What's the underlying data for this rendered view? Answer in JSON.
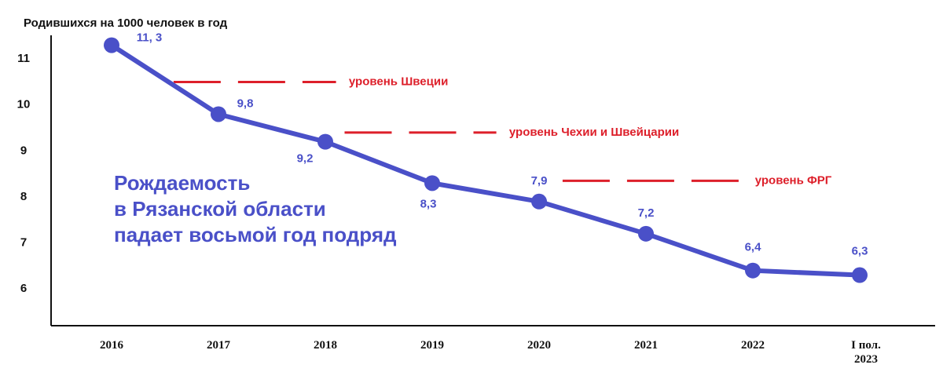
{
  "chart_data": {
    "type": "line",
    "y_axis_label": "Родившихся на 1000 человек в год",
    "categories": [
      "2016",
      "2017",
      "2018",
      "2019",
      "2020",
      "2021",
      "2022",
      "I пол. 2023"
    ],
    "series": [
      {
        "color": "#4a50c8",
        "values": [
          11.3,
          9.8,
          9.2,
          8.3,
          7.9,
          7.2,
          6.4,
          6.3
        ],
        "value_labels": [
          "11, 3",
          "9,8",
          "9,2",
          "8,3",
          "7,9",
          "7,2",
          "6,4",
          "6,3"
        ]
      }
    ],
    "ylim": [
      5.2,
      11.6
    ],
    "yticks": [
      6,
      7,
      8,
      9,
      10,
      11
    ],
    "reference_lines": [
      {
        "label": "уровень Швеции",
        "value": 10.5,
        "color": "#dd1f2a"
      },
      {
        "label": "уровень Чехии и Швейцарии",
        "value": 9.4,
        "color": "#dd1f2a"
      },
      {
        "label": "уровень ФРГ",
        "value": 8.35,
        "color": "#dd1f2a"
      }
    ],
    "annotation": [
      "Рождаемость",
      "в Рязанской области",
      "падает восьмой год подряд"
    ]
  }
}
